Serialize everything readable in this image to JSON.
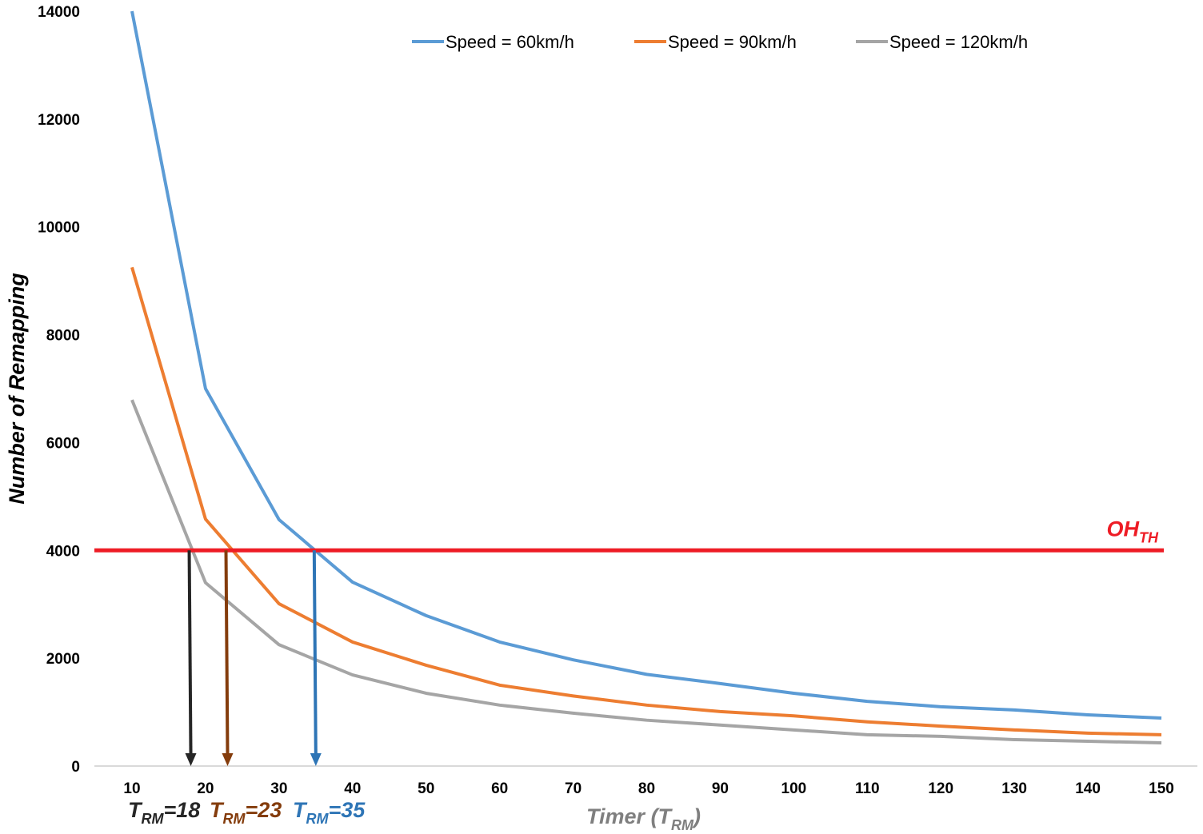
{
  "chart_data": {
    "type": "line",
    "title": "",
    "xlabel": "Timer",
    "xlabel_sub": "(T",
    "xlabel_subscript": "RM",
    "xlabel_close": ")",
    "ylabel": "Number of Remapping",
    "x": [
      10,
      20,
      30,
      40,
      50,
      60,
      70,
      80,
      90,
      100,
      110,
      120,
      130,
      140,
      150
    ],
    "xticks": [
      "10",
      "20",
      "30",
      "40",
      "50",
      "60",
      "70",
      "80",
      "90",
      "100",
      "110",
      "120",
      "130",
      "140",
      "150"
    ],
    "ylim": [
      0,
      14000
    ],
    "yticks": [
      "0",
      "2000",
      "4000",
      "6000",
      "8000",
      "10000",
      "12000",
      "14000"
    ],
    "grid": false,
    "legend_position": "top",
    "series": [
      {
        "name": "Speed = 60km/h",
        "color": "#5b9bd5",
        "values": [
          14000,
          7000,
          4570,
          3410,
          2790,
          2300,
          1970,
          1700,
          1530,
          1350,
          1200,
          1100,
          1040,
          950,
          890
        ]
      },
      {
        "name": "Speed = 90km/h",
        "color": "#ed7d31",
        "values": [
          9250,
          4580,
          3010,
          2300,
          1870,
          1500,
          1300,
          1130,
          1010,
          930,
          820,
          740,
          670,
          610,
          580
        ]
      },
      {
        "name": "Speed = 120km/h",
        "color": "#a5a5a5",
        "values": [
          6790,
          3400,
          2250,
          1690,
          1350,
          1130,
          980,
          850,
          760,
          670,
          580,
          550,
          490,
          460,
          430
        ]
      }
    ],
    "threshold": {
      "value": 4000,
      "label": "OH",
      "label_subscript": "TH",
      "color": "#ee1c25"
    },
    "annotations": [
      {
        "x": 18,
        "label": "T",
        "sub": "RM",
        "text": "=18",
        "color": "#262626"
      },
      {
        "x": 23,
        "label": "T",
        "sub": "RM",
        "text": "=23",
        "color": "#843c0c"
      },
      {
        "x": 35,
        "label": "T",
        "sub": "RM",
        "text": "=35",
        "color": "#2e75b6"
      }
    ]
  }
}
